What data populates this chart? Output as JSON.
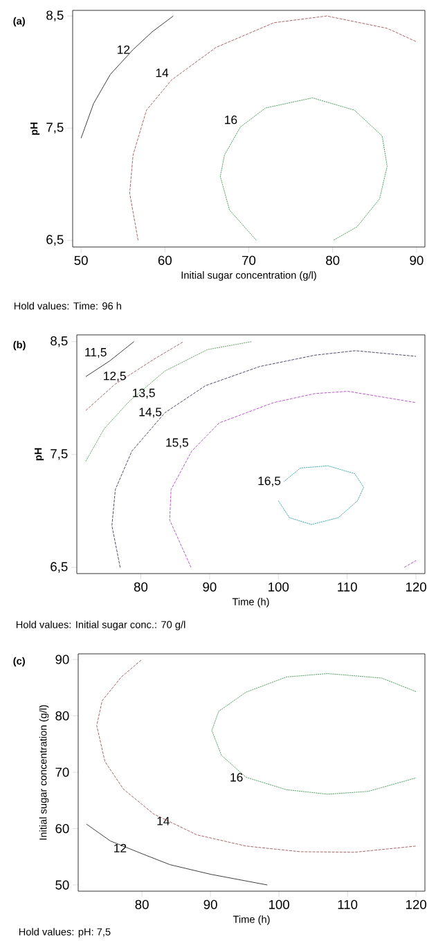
{
  "chart_data": [
    {
      "type": "line",
      "title": "(a)",
      "xlabel": "Initial sugar concentration (g/l)",
      "ylabel": "pH",
      "xlim": [
        49,
        91
      ],
      "ylim": [
        6.44,
        8.55
      ],
      "xticks": [
        50,
        60,
        70,
        80,
        90
      ],
      "yticks": [
        {
          "value": 6.5,
          "label": "6,5"
        },
        {
          "value": 7.5,
          "label": "7,5"
        },
        {
          "value": 8.5,
          "label": "8,5"
        }
      ],
      "annotations": [
        "Hold values:  Time: 96 h"
      ],
      "series": [
        {
          "name": "12",
          "color": "#303030",
          "line_style": "solid",
          "x": [
            50,
            51.5,
            53.5,
            56.2,
            58.5,
            61
          ],
          "values": [
            7.41,
            7.72,
            7.98,
            8.2,
            8.36,
            8.5
          ]
        },
        {
          "name": "14",
          "color": "#a05a5a",
          "line_style": "dashed",
          "x": [
            56.8,
            55.8,
            56.2,
            57.8,
            60.8,
            66.1,
            73.0,
            79.3,
            86.5,
            90
          ],
          "values": [
            6.5,
            6.92,
            7.26,
            7.66,
            7.93,
            8.22,
            8.44,
            8.5,
            8.39,
            8.27
          ]
        },
        {
          "name": "16",
          "color": "#4a9a5a",
          "line_style": "dotted",
          "x": [
            70.9,
            67.7,
            66.6,
            67.1,
            69.0,
            72.0,
            77.6,
            82.6,
            85.9,
            86.5,
            85.6,
            82.9,
            80.1
          ],
          "values": [
            6.5,
            6.77,
            7.07,
            7.26,
            7.51,
            7.68,
            7.77,
            7.66,
            7.43,
            7.16,
            6.87,
            6.62,
            6.5
          ]
        }
      ]
    },
    {
      "type": "line",
      "title": "(b)",
      "xlabel": "Time (h)",
      "ylabel": "pH",
      "xlim": [
        70.7,
        121.3
      ],
      "ylim": [
        6.445,
        8.56
      ],
      "xticks": [
        80,
        90,
        100,
        110,
        120
      ],
      "yticks": [
        {
          "value": 6.5,
          "label": "6,5"
        },
        {
          "value": 7.5,
          "label": "7,5"
        },
        {
          "value": 8.5,
          "label": "8,5"
        }
      ],
      "annotations": [
        "Hold values:  Initial sugar conc.: 70 g/l"
      ],
      "series": [
        {
          "name": "11,5",
          "color": "#303030",
          "line_style": "solid",
          "x": [
            72,
            75.5,
            79.0
          ],
          "values": [
            8.19,
            8.33,
            8.5
          ]
        },
        {
          "name": "12,5",
          "color": "#a06060",
          "line_style": "dashed",
          "x": [
            72,
            76.2,
            81.8,
            86.2
          ],
          "values": [
            7.89,
            8.12,
            8.34,
            8.5
          ]
        },
        {
          "name": "13,5",
          "color": "#60a060",
          "line_style": "dotted",
          "x": [
            72,
            74.7,
            78.3,
            83.5,
            89.7,
            96.1
          ],
          "values": [
            7.44,
            7.73,
            7.97,
            8.24,
            8.43,
            8.5
          ]
        },
        {
          "name": "14,5",
          "color": "#404060",
          "line_style": "dashed",
          "x": [
            77.0,
            75.8,
            76.3,
            78.7,
            83.5,
            89.4,
            97.3,
            105.3,
            111.2,
            120
          ],
          "values": [
            6.5,
            6.87,
            7.19,
            7.53,
            7.87,
            8.11,
            8.28,
            8.38,
            8.42,
            8.37
          ]
        },
        {
          "name": "15,5",
          "color": "#b050c0",
          "line_style": "dashed",
          "x": [
            87.3,
            84.2,
            84.4,
            87.4,
            91.4,
            99.3,
            105.3,
            110.1,
            120
          ],
          "values": [
            6.5,
            6.92,
            7.19,
            7.53,
            7.78,
            7.96,
            8.04,
            8.06,
            7.96
          ]
        },
        {
          "color": "#b050c0",
          "line_style": "dashed",
          "x": [
            118.3,
            120
          ],
          "values": [
            6.5,
            6.56
          ]
        },
        {
          "name": "16,5",
          "color": "#30a0a0",
          "line_style": "dotted",
          "x": [
            100.0,
            101.6,
            104.8,
            108.7,
            111.5,
            112.4,
            111.1,
            107.2,
            103.2,
            100.8
          ],
          "values": [
            7.09,
            6.94,
            6.88,
            6.94,
            7.09,
            7.21,
            7.33,
            7.4,
            7.38,
            7.26
          ]
        }
      ]
    },
    {
      "type": "line",
      "title": "(c)",
      "xlabel": "Time (h)",
      "ylabel": "Initial sugar concentration (g/l)",
      "xlim": [
        70.7,
        121.3
      ],
      "ylim": [
        48.9,
        91
      ],
      "xticks": [
        80,
        90,
        100,
        110,
        120
      ],
      "yticks": [
        50,
        60,
        70,
        80,
        90
      ],
      "annotations": [
        "Hold values:  pH: 7,5"
      ],
      "series": [
        {
          "name": "12",
          "color": "#303030",
          "line_style": "solid",
          "x": [
            71.9,
            75.4,
            80.1,
            84.1,
            90,
            98.3
          ],
          "values": [
            60.8,
            57.8,
            55.5,
            53.6,
            51.9,
            50
          ]
        },
        {
          "name": "14",
          "color": "#a05a5a",
          "line_style": "dashed",
          "x": [
            79.9,
            77.0,
            74.2,
            73.4,
            74.6,
            77.3,
            81.7,
            88.0,
            95.2,
            103.1,
            111.0,
            120
          ],
          "values": [
            89.9,
            86.9,
            82.7,
            78.3,
            71.9,
            67.0,
            62.6,
            58.9,
            56.9,
            55.9,
            55.8,
            56.9
          ]
        },
        {
          "name": "16",
          "color": "#4a9a5a",
          "line_style": "dotted",
          "x": [
            120,
            115.0,
            107.1,
            101.1,
            95.2,
            91.2,
            90.2,
            91.6,
            95.2,
            101.1,
            107.1,
            113.0,
            120
          ],
          "values": [
            84.3,
            86.7,
            87.5,
            86.9,
            84.2,
            80.8,
            77.4,
            73.0,
            69.1,
            66.9,
            66.1,
            66.6,
            69.0
          ]
        }
      ]
    }
  ]
}
